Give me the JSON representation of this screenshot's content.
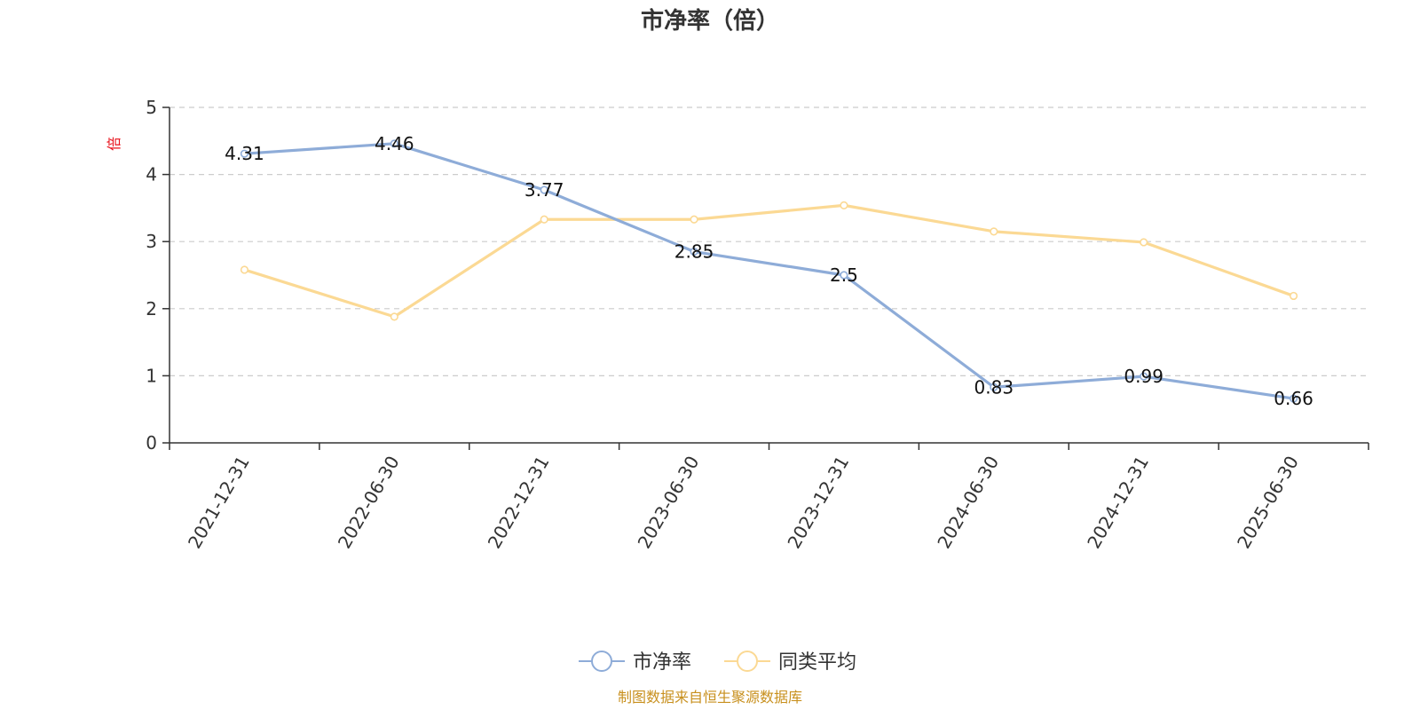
{
  "chart_data": {
    "type": "line",
    "title": "市净率（倍）",
    "y_unit": "倍",
    "categories": [
      "2021-12-31",
      "2022-06-30",
      "2022-12-31",
      "2023-06-30",
      "2023-12-31",
      "2024-06-30",
      "2024-12-31",
      "2025-06-30"
    ],
    "ylim": [
      0,
      5
    ],
    "yticks": [
      0,
      1,
      2,
      3,
      4,
      5
    ],
    "grid": true,
    "legend_position": "bottom-center",
    "series": [
      {
        "name": "市净率",
        "color": "#8eacd8",
        "values": [
          4.31,
          4.46,
          3.77,
          2.85,
          2.5,
          0.83,
          0.99,
          0.66
        ],
        "labels": [
          "4.31",
          "4.46",
          "3.77",
          "2.85",
          "2.5",
          "0.83",
          "0.99",
          "0.66"
        ]
      },
      {
        "name": "同类平均",
        "color": "#fbd994",
        "values": [
          2.58,
          1.88,
          3.33,
          3.33,
          3.54,
          3.15,
          2.99,
          2.19
        ]
      }
    ],
    "source": "制图数据来自恒生聚源数据库"
  }
}
